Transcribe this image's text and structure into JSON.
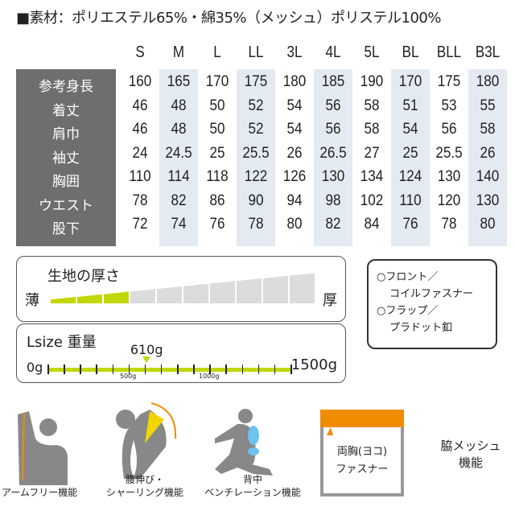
{
  "material": "■素材：ポリエステル65%・綿35%（メッシュ）ポリステル100%",
  "sizes": [
    "S",
    "M",
    "L",
    "LL",
    "3L",
    "4L",
    "5L",
    "BL",
    "BLL",
    "B3L"
  ],
  "rows": [
    {
      "label": "参考身長",
      "values": [
        "160",
        "165",
        "170",
        "175",
        "180",
        "185",
        "190",
        "170",
        "175",
        "180"
      ]
    },
    {
      "label": "着丈",
      "values": [
        "46",
        "48",
        "50",
        "52",
        "54",
        "56",
        "58",
        "51",
        "53",
        "55"
      ]
    },
    {
      "label": "肩巾",
      "values": [
        "46",
        "48",
        "50",
        "52",
        "54",
        "56",
        "58",
        "54",
        "56",
        "58"
      ]
    },
    {
      "label": "袖丈",
      "values": [
        "24",
        "24.5",
        "25",
        "25.5",
        "26",
        "26.5",
        "27",
        "25",
        "25.5",
        "26"
      ]
    },
    {
      "label": "胸囲",
      "values": [
        "110",
        "114",
        "118",
        "122",
        "126",
        "130",
        "134",
        "124",
        "130",
        "140"
      ]
    },
    {
      "label": "ウエスト",
      "values": [
        "78",
        "82",
        "86",
        "90",
        "94",
        "98",
        "102",
        "110",
        "120",
        "130"
      ]
    },
    {
      "label": "股下",
      "values": [
        "72",
        "74",
        "76",
        "78",
        "80",
        "82",
        "84",
        "76",
        "78",
        "80"
      ]
    }
  ],
  "thickness": {
    "title": "生地の厚さ",
    "thin": "薄",
    "thick": "厚",
    "level": 3,
    "max": 10
  },
  "weight": {
    "title": "Lsize 重量",
    "value": 610,
    "value_label": "610g",
    "min_label": "0g",
    "max_label": "1500g",
    "tick_500": "500g",
    "tick_1000": "1000g",
    "min": 0,
    "max": 1500
  },
  "closure": {
    "line1": "○フロント／",
    "line2": "コイルファスナー",
    "line3": "○フラップ／",
    "line4": "プラドット釦"
  },
  "features": {
    "arm": "アームフリー機能",
    "waist1": "腰伸び・",
    "waist2": "シャーリング機能",
    "back1": "背中",
    "back2": "ベンチレーション機能",
    "chest1": "両胸(ヨコ)",
    "chest2": "ファスナー",
    "mesh1": "脇メッシュ",
    "mesh2": "機能"
  },
  "colors": {
    "accent_green": "#c3d600",
    "orange": "#f08c00",
    "shade": "#e3eaf1",
    "label_bg": "#6e6e6e"
  }
}
